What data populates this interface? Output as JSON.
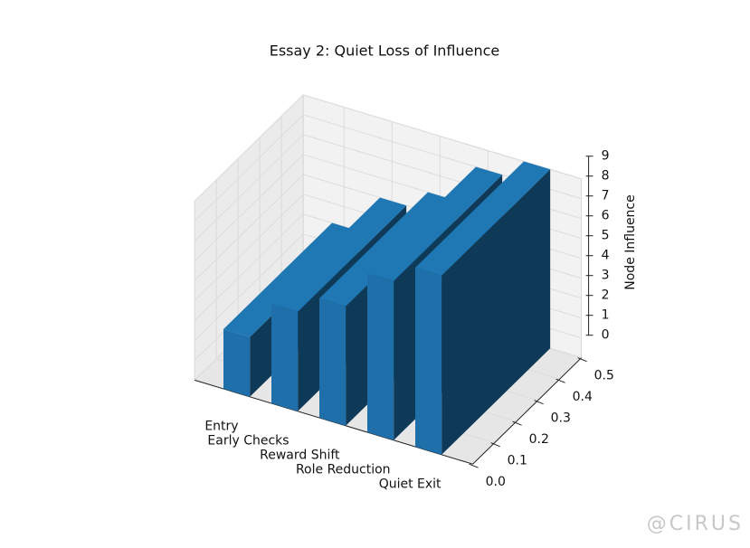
{
  "chart_data": {
    "type": "bar3d",
    "title": "Essay 2: Quiet Loss of Influence",
    "zlabel": "Node Influence",
    "categories": [
      "Entry",
      "Early Checks",
      "Reward Shift",
      "Role Reduction",
      "Quiet Exit"
    ],
    "values": [
      3,
      5,
      6,
      8,
      9
    ],
    "color": "#1f77b4",
    "zlim": [
      0,
      9
    ],
    "zticks": [
      0,
      1,
      2,
      3,
      4,
      5,
      6,
      7,
      8,
      9
    ],
    "ylim": [
      0,
      0.5
    ],
    "yticks": [
      {
        "value": 0,
        "label": "0.0"
      },
      0.1,
      0.2,
      0.3,
      0.4,
      0.5
    ],
    "grid": true
  },
  "watermark": "@CIRUS"
}
